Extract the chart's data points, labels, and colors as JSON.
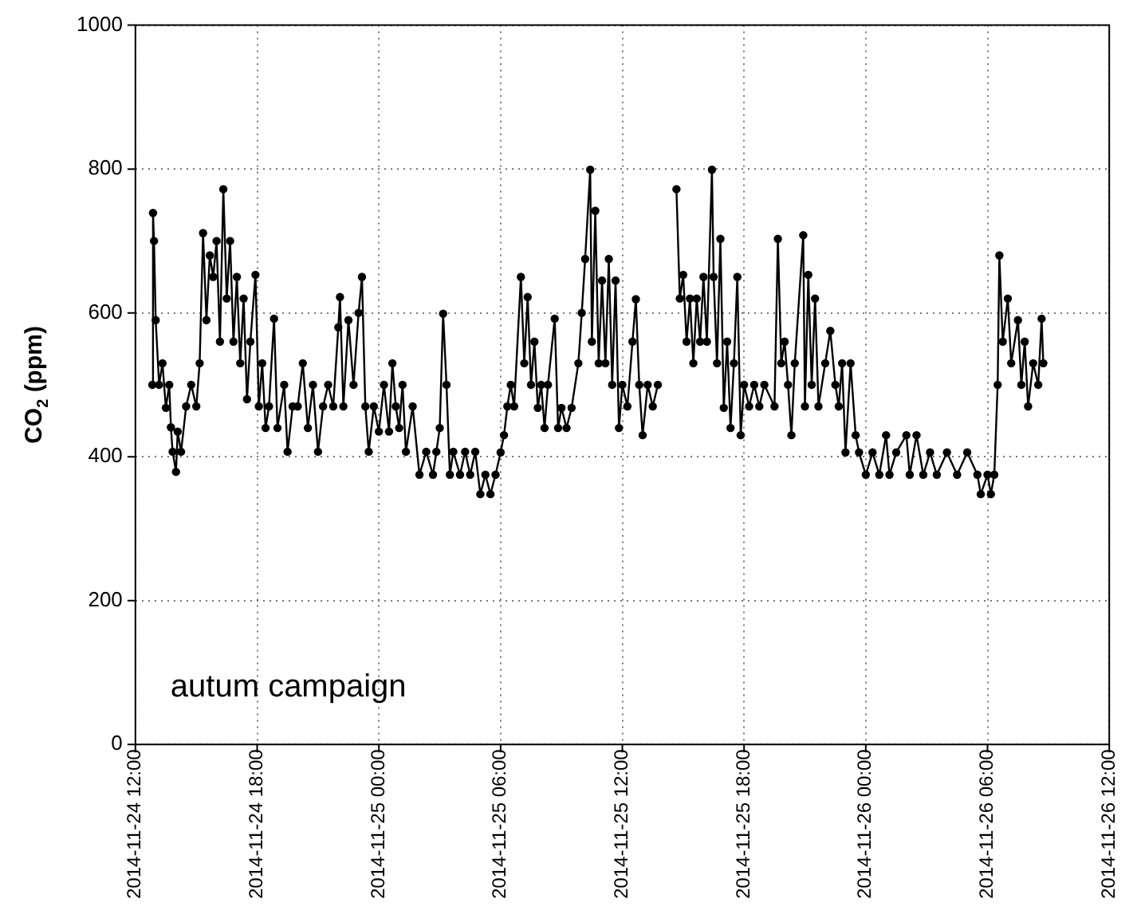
{
  "chart_data": {
    "type": "line",
    "ylabel": "CO$_{2}$ (ppm)",
    "annotations": [
      "autum campaign"
    ],
    "xlim": [
      "2014-11-24T12:00",
      "2014-11-26T12:00"
    ],
    "xticks": [
      {
        "value": "2014-11-24T12:00",
        "label": "2014-11-24 12:00"
      },
      {
        "value": "2014-11-24T18:00",
        "label": "2014-11-24 18:00"
      },
      {
        "value": "2014-11-25T00:00",
        "label": "2014-11-25 00:00"
      },
      {
        "value": "2014-11-25T06:00",
        "label": "2014-11-25 06:00"
      },
      {
        "value": "2014-11-25T12:00",
        "label": "2014-11-25 12:00"
      },
      {
        "value": "2014-11-25T18:00",
        "label": "2014-11-25 18:00"
      },
      {
        "value": "2014-11-26T00:00",
        "label": "2014-11-26 00:00"
      },
      {
        "value": "2014-11-26T06:00",
        "label": "2014-11-26 06:00"
      },
      {
        "value": "2014-11-26T12:00",
        "label": "2014-11-26 12:00"
      }
    ],
    "ylim": [
      0,
      1000
    ],
    "yticks": [
      0,
      200,
      400,
      600,
      800,
      1000
    ],
    "grid": true,
    "legend": false,
    "marker": "circle",
    "line_style": "solid",
    "x": [
      "2014-11-24T12:50",
      "2014-11-24T12:52",
      "2014-11-24T12:55",
      "2014-11-24T13:00",
      "2014-11-24T13:10",
      "2014-11-24T13:20",
      "2014-11-24T13:30",
      "2014-11-24T13:40",
      "2014-11-24T13:45",
      "2014-11-24T13:50",
      "2014-11-24T14:00",
      "2014-11-24T14:05",
      "2014-11-24T14:15",
      "2014-11-24T14:30",
      "2014-11-24T14:45",
      "2014-11-24T15:00",
      "2014-11-24T15:10",
      "2014-11-24T15:20",
      "2014-11-24T15:30",
      "2014-11-24T15:40",
      "2014-11-24T15:50",
      "2014-11-24T16:00",
      "2014-11-24T16:10",
      "2014-11-24T16:20",
      "2014-11-24T16:30",
      "2014-11-24T16:40",
      "2014-11-24T16:50",
      "2014-11-24T17:00",
      "2014-11-24T17:10",
      "2014-11-24T17:20",
      "2014-11-24T17:30",
      "2014-11-24T17:40",
      "2014-11-24T17:55",
      "2014-11-24T18:05",
      "2014-11-24T18:15",
      "2014-11-24T18:25",
      "2014-11-24T18:35",
      "2014-11-24T18:50",
      "2014-11-24T19:00",
      "2014-11-24T19:20",
      "2014-11-24T19:30",
      "2014-11-24T19:45",
      "2014-11-24T20:00",
      "2014-11-24T20:15",
      "2014-11-24T20:30",
      "2014-11-24T20:45",
      "2014-11-24T21:00",
      "2014-11-24T21:15",
      "2014-11-24T21:30",
      "2014-11-24T21:45",
      "2014-11-24T22:00",
      "2014-11-24T22:05",
      "2014-11-24T22:15",
      "2014-11-24T22:30",
      "2014-11-24T22:45",
      "2014-11-24T23:00",
      "2014-11-24T23:10",
      "2014-11-24T23:20",
      "2014-11-24T23:30",
      "2014-11-24T23:45",
      "2014-11-25T00:00",
      "2014-11-25T00:15",
      "2014-11-25T00:30",
      "2014-11-25T00:40",
      "2014-11-25T00:50",
      "2014-11-25T01:00",
      "2014-11-25T01:10",
      "2014-11-25T01:20",
      "2014-11-25T01:40",
      "2014-11-25T02:00",
      "2014-11-25T02:20",
      "2014-11-25T02:40",
      "2014-11-25T02:50",
      "2014-11-25T03:00",
      "2014-11-25T03:10",
      "2014-11-25T03:20",
      "2014-11-25T03:30",
      "2014-11-25T03:40",
      "2014-11-25T04:00",
      "2014-11-25T04:15",
      "2014-11-25T04:30",
      "2014-11-25T04:45",
      "2014-11-25T05:00",
      "2014-11-25T05:15",
      "2014-11-25T05:30",
      "2014-11-25T05:45",
      "2014-11-25T06:00",
      "2014-11-25T06:10",
      "2014-11-25T06:20",
      "2014-11-25T06:30",
      "2014-11-25T06:40",
      "2014-11-25T07:00",
      "2014-11-25T07:10",
      "2014-11-25T07:20",
      "2014-11-25T07:30",
      "2014-11-25T07:40",
      "2014-11-25T07:50",
      "2014-11-25T08:00",
      "2014-11-25T08:10",
      "2014-11-25T08:20",
      "2014-11-25T08:40",
      "2014-11-25T08:50",
      "2014-11-25T09:00",
      "2014-11-25T09:15",
      "2014-11-25T09:30",
      "2014-11-25T09:50",
      "2014-11-25T10:00",
      "2014-11-25T10:10",
      "2014-11-25T10:25",
      "2014-11-25T10:30",
      "2014-11-25T10:40",
      "2014-11-25T10:50",
      "2014-11-25T11:00",
      "2014-11-25T11:10",
      "2014-11-25T11:20",
      "2014-11-25T11:30",
      "2014-11-25T11:40",
      "2014-11-25T11:50",
      "2014-11-25T12:00",
      "2014-11-25T12:15",
      "2014-11-25T12:30",
      "2014-11-25T12:40",
      "2014-11-25T12:50",
      "2014-11-25T13:00",
      "2014-11-25T13:15",
      "2014-11-25T13:30",
      "2014-11-25T13:45",
      "2014-11-25T14:10",
      "2014-11-25T14:40",
      "2014-11-25T14:50",
      "2014-11-25T15:00",
      "2014-11-25T15:10",
      "2014-11-25T15:20",
      "2014-11-25T15:30",
      "2014-11-25T15:40",
      "2014-11-25T15:50",
      "2014-11-25T16:00",
      "2014-11-25T16:10",
      "2014-11-25T16:25",
      "2014-11-25T16:30",
      "2014-11-25T16:40",
      "2014-11-25T16:50",
      "2014-11-25T17:00",
      "2014-11-25T17:10",
      "2014-11-25T17:20",
      "2014-11-25T17:30",
      "2014-11-25T17:40",
      "2014-11-25T17:50",
      "2014-11-25T18:00",
      "2014-11-25T18:15",
      "2014-11-25T18:30",
      "2014-11-25T18:45",
      "2014-11-25T19:00",
      "2014-11-25T19:30",
      "2014-11-25T19:40",
      "2014-11-25T19:50",
      "2014-11-25T20:00",
      "2014-11-25T20:10",
      "2014-11-25T20:20",
      "2014-11-25T20:30",
      "2014-11-25T20:55",
      "2014-11-25T21:00",
      "2014-11-25T21:10",
      "2014-11-25T21:20",
      "2014-11-25T21:30",
      "2014-11-25T21:40",
      "2014-11-25T22:00",
      "2014-11-25T22:15",
      "2014-11-25T22:30",
      "2014-11-25T22:40",
      "2014-11-25T22:50",
      "2014-11-25T23:00",
      "2014-11-25T23:15",
      "2014-11-25T23:30",
      "2014-11-25T23:40",
      "2014-11-26T00:00",
      "2014-11-26T00:20",
      "2014-11-26T00:40",
      "2014-11-26T01:00",
      "2014-11-26T01:10",
      "2014-11-26T01:30",
      "2014-11-26T02:00",
      "2014-11-26T02:10",
      "2014-11-26T02:30",
      "2014-11-26T02:50",
      "2014-11-26T03:10",
      "2014-11-26T03:30",
      "2014-11-26T04:00",
      "2014-11-26T04:30",
      "2014-11-26T05:00",
      "2014-11-26T05:30",
      "2014-11-26T05:40",
      "2014-11-26T06:00",
      "2014-11-26T06:10",
      "2014-11-26T06:20",
      "2014-11-26T06:30",
      "2014-11-26T06:35",
      "2014-11-26T06:45",
      "2014-11-26T07:00",
      "2014-11-26T07:10",
      "2014-11-26T07:30",
      "2014-11-26T07:40",
      "2014-11-26T07:50",
      "2014-11-26T08:00",
      "2014-11-26T08:15",
      "2014-11-26T08:30",
      "2014-11-26T08:40",
      "2014-11-26T08:45"
    ],
    "series": [
      {
        "color": "#000000",
        "values": [
          500,
          739,
          700,
          590,
          500,
          530,
          468,
          500,
          441,
          407,
          379,
          435,
          407,
          470,
          500,
          470,
          530,
          711,
          590,
          680,
          650,
          700,
          560,
          772,
          620,
          700,
          560,
          650,
          530,
          620,
          480,
          560,
          653,
          470,
          530,
          440,
          470,
          592,
          440,
          500,
          407,
          470,
          470,
          530,
          440,
          500,
          407,
          470,
          500,
          470,
          580,
          622,
          470,
          590,
          500,
          600,
          650,
          470,
          407,
          470,
          435,
          500,
          435,
          530,
          470,
          440,
          500,
          407,
          470,
          375,
          407,
          375,
          407,
          440,
          599,
          500,
          375,
          407,
          375,
          407,
          375,
          407,
          348,
          375,
          348,
          375,
          406,
          430,
          470,
          500,
          470,
          650,
          530,
          622,
          500,
          560,
          468,
          500,
          440,
          500,
          592,
          440,
          468,
          440,
          468,
          530,
          600,
          675,
          799,
          560,
          742,
          530,
          645,
          530,
          675,
          500,
          645,
          440,
          500,
          470,
          560,
          619,
          500,
          430,
          500,
          470,
          500,
          null,
          772,
          620,
          653,
          560,
          620,
          530,
          620,
          560,
          650,
          560,
          799,
          650,
          530,
          703,
          468,
          560,
          440,
          530,
          650,
          430,
          500,
          470,
          500,
          470,
          500,
          470,
          703,
          530,
          560,
          500,
          430,
          530,
          708,
          470,
          653,
          500,
          620,
          470,
          530,
          575,
          500,
          470,
          530,
          406,
          530,
          430,
          406,
          375,
          406,
          375,
          430,
          375,
          406,
          430,
          375,
          430,
          375,
          406,
          375,
          406,
          375,
          406,
          375,
          348,
          375,
          348,
          375,
          500,
          680,
          560,
          620,
          530,
          590,
          500,
          560,
          470,
          530,
          500,
          592,
          530
        ]
      }
    ]
  }
}
